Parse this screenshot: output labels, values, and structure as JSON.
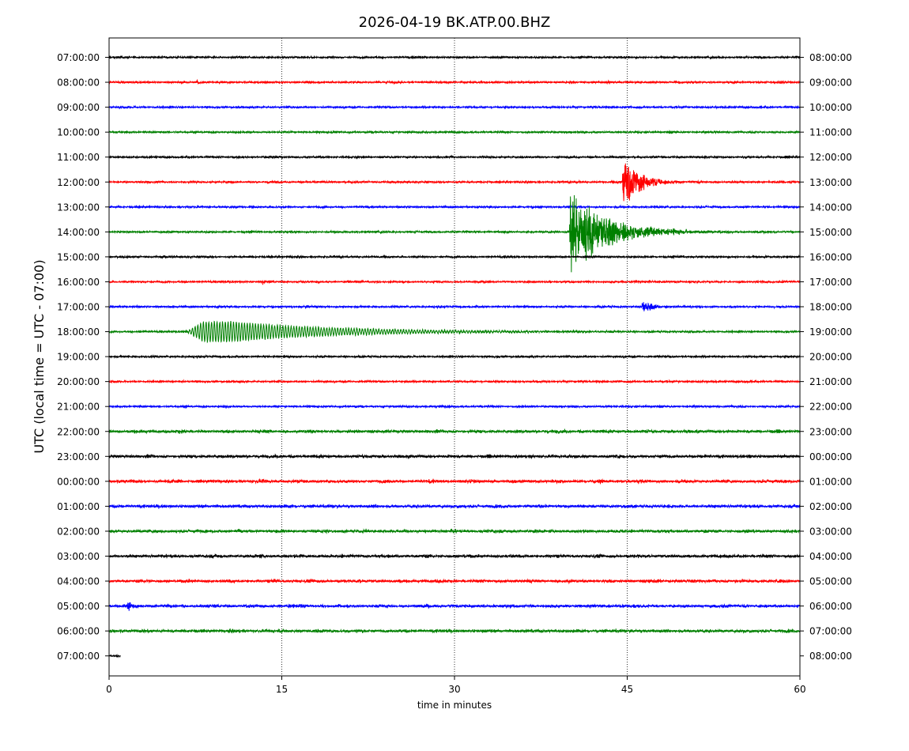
{
  "chart_data": {
    "type": "line",
    "title": "2026-04-19 BK.ATP.00.BHZ",
    "xlabel": "time in minutes",
    "ylabel": "UTC (local time = UTC - 07:00)",
    "xlim": [
      0,
      60
    ],
    "x_ticks": [
      "0",
      "15",
      "30",
      "45",
      "60"
    ],
    "vertical_grid_minutes": [
      15,
      30,
      45
    ],
    "trace_colors": [
      "#000000",
      "#ff0000",
      "#0000ff",
      "#008000"
    ],
    "left_labels": [
      "07:00:00",
      "08:00:00",
      "09:00:00",
      "10:00:00",
      "11:00:00",
      "12:00:00",
      "13:00:00",
      "14:00:00",
      "15:00:00",
      "16:00:00",
      "17:00:00",
      "18:00:00",
      "19:00:00",
      "20:00:00",
      "21:00:00",
      "22:00:00",
      "23:00:00",
      "00:00:00",
      "01:00:00",
      "02:00:00",
      "03:00:00",
      "04:00:00",
      "05:00:00",
      "06:00:00",
      "07:00:00"
    ],
    "right_labels": [
      "08:00:00",
      "09:00:00",
      "10:00:00",
      "11:00:00",
      "12:00:00",
      "13:00:00",
      "14:00:00",
      "15:00:00",
      "16:00:00",
      "17:00:00",
      "18:00:00",
      "19:00:00",
      "20:00:00",
      "21:00:00",
      "22:00:00",
      "23:00:00",
      "00:00:00",
      "01:00:00",
      "02:00:00",
      "03:00:00",
      "04:00:00",
      "05:00:00",
      "06:00:00",
      "07:00:00",
      "08:00:00"
    ],
    "last_trace_end_minute": 1.0,
    "events": [
      {
        "row": 1,
        "start_min": 7.6,
        "peak_amp": 0.1,
        "decay_min": 0.3,
        "kind": "blip"
      },
      {
        "row": 5,
        "start_min": 44.6,
        "peak_amp": 1.0,
        "decay_min": 1.4,
        "kind": "local"
      },
      {
        "row": 7,
        "start_min": 40.0,
        "peak_amp": 1.45,
        "decay_min": 3.2,
        "kind": "regional"
      },
      {
        "row": 9,
        "start_min": 13.3,
        "peak_amp": 0.12,
        "decay_min": 0.2,
        "kind": "blip"
      },
      {
        "row": 10,
        "start_min": 46.3,
        "peak_amp": 0.22,
        "decay_min": 1.0,
        "kind": "local"
      },
      {
        "row": 11,
        "start_min": 6.7,
        "peak_amp": 0.3,
        "decay_min": 9.0,
        "kind": "teleseism"
      },
      {
        "row": 22,
        "start_min": 1.6,
        "peak_amp": 0.3,
        "decay_min": 0.4,
        "kind": "local"
      }
    ]
  }
}
